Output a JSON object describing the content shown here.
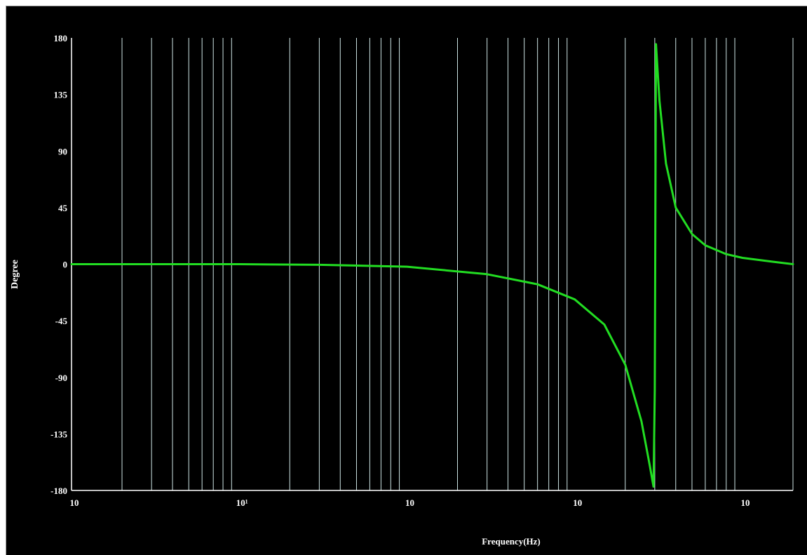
{
  "chart_data": {
    "type": "line",
    "title": "",
    "xlabel": "Frequency(Hz)",
    "ylabel": "Degree",
    "xscale": "log",
    "xlim": [
      1,
      20000
    ],
    "ylim": [
      -180,
      180
    ],
    "yticks": [
      180,
      135,
      90,
      45,
      0,
      -45,
      -90,
      -135,
      -180
    ],
    "ytick_labels": [
      "180",
      "135",
      "90",
      "45",
      "0",
      "-45",
      "-90",
      "-135",
      "-180"
    ],
    "xticks": [
      1,
      10,
      100,
      1000,
      10000
    ],
    "xtick_labels": [
      "10",
      "10¹",
      "10",
      "10",
      "10"
    ],
    "grid": "vertical",
    "series": [
      {
        "x": [
          1,
          10,
          30,
          100,
          300,
          600,
          1000,
          1500,
          2000,
          2500,
          2800,
          2950,
          3000,
          3050,
          3200,
          3500,
          4000,
          5000,
          6000,
          8000,
          10000,
          15000,
          20000
        ],
        "values": [
          0,
          0,
          -0.5,
          -2,
          -8,
          -16,
          -28,
          -48,
          -80,
          -125,
          -160,
          -177,
          -100,
          175,
          130,
          80,
          45,
          24,
          15,
          8,
          5,
          2,
          0
        ]
      }
    ],
    "colors": {
      "background": "#000000",
      "grid": "#cfe6e6",
      "axis": "#ffffff",
      "line": "#22dd22",
      "text": "#ffffff"
    }
  }
}
